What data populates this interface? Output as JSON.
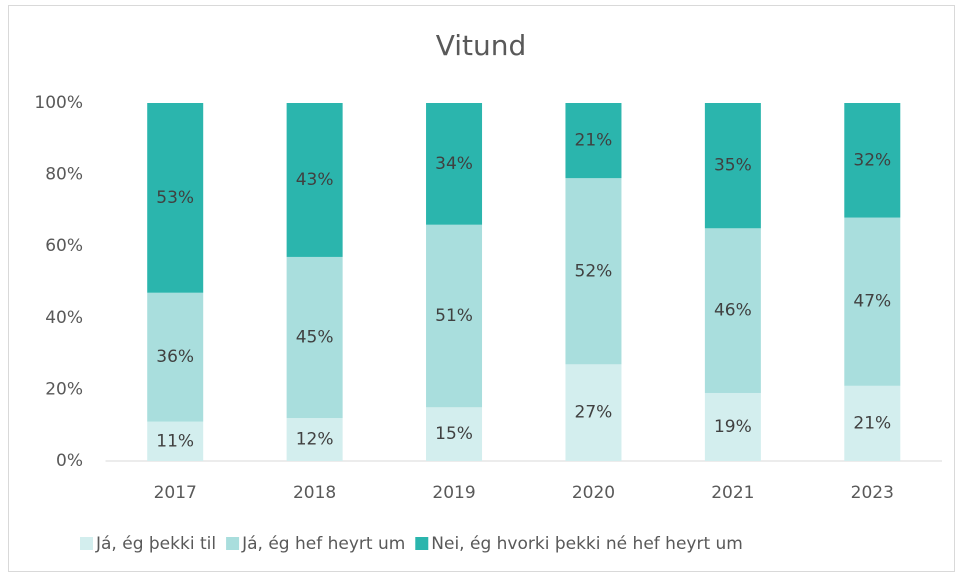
{
  "chart_data": {
    "type": "stacked_bar",
    "title": "Vitund",
    "categories": [
      "2017",
      "2018",
      "2019",
      "2020",
      "2021",
      "2023"
    ],
    "series": [
      {
        "name": "Já, ég þekki til",
        "color": "#d3eeee",
        "values": [
          11,
          12,
          15,
          27,
          19,
          21
        ],
        "value_labels": [
          "11%",
          "12%",
          "15%",
          "27%",
          "19%",
          "21%"
        ]
      },
      {
        "name": "Já, ég hef heyrt um",
        "color": "#a9dedd",
        "values": [
          36,
          45,
          51,
          52,
          46,
          47
        ],
        "value_labels": [
          "36%",
          "45%",
          "51%",
          "52%",
          "46%",
          "47%"
        ]
      },
      {
        "name": "Nei, ég hvorki þekki né hef heyrt um",
        "color": "#2bb5ad",
        "values": [
          53,
          43,
          34,
          21,
          35,
          32
        ],
        "value_labels": [
          "53%",
          "43%",
          "34%",
          "21%",
          "35%",
          "32%"
        ]
      }
    ],
    "ylim": [
      0,
      100
    ],
    "yticks": [
      {
        "value": 0,
        "label": "0%"
      },
      {
        "value": 20,
        "label": "20%"
      },
      {
        "value": 40,
        "label": "40%"
      },
      {
        "value": 60,
        "label": "60%"
      },
      {
        "value": 80,
        "label": "80%"
      },
      {
        "value": 100,
        "label": "100%"
      }
    ],
    "legend": "bottom"
  }
}
